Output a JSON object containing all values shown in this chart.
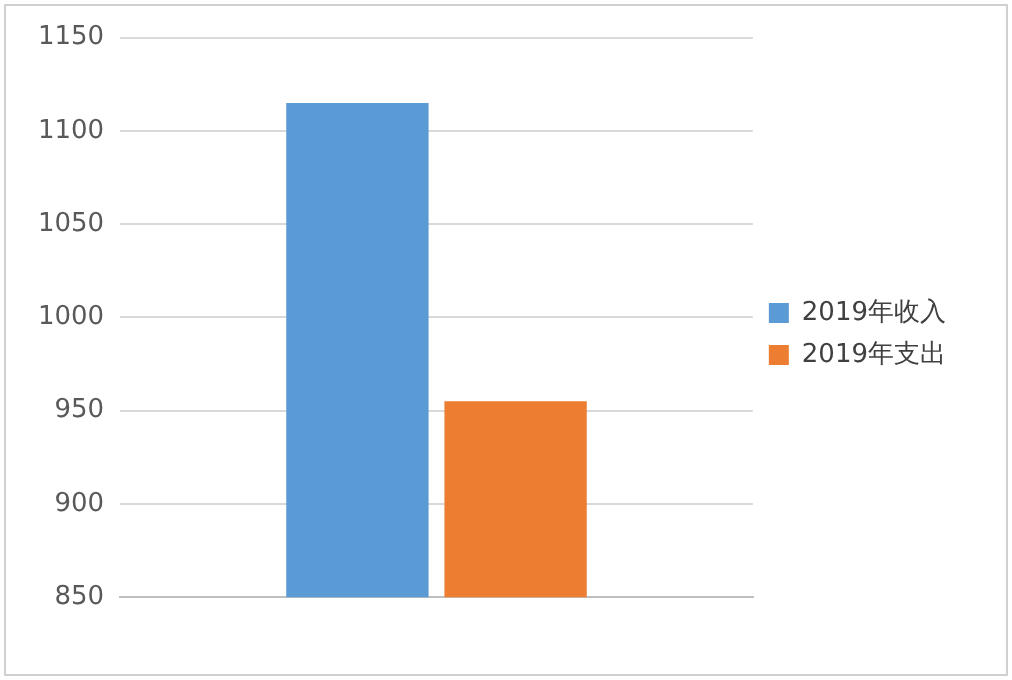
{
  "chart_data": {
    "type": "bar",
    "categories": [
      null
    ],
    "series": [
      {
        "name": "2019年收入",
        "color": "#5b9bd5",
        "values": [
          1115
        ]
      },
      {
        "name": "2019年支出",
        "color": "#ed7d31",
        "values": [
          955
        ]
      }
    ],
    "ylim": [
      850,
      1150
    ],
    "yticks": [
      850,
      900,
      950,
      1000,
      1050,
      1100,
      1150
    ],
    "grid": "y",
    "legend": "right"
  }
}
